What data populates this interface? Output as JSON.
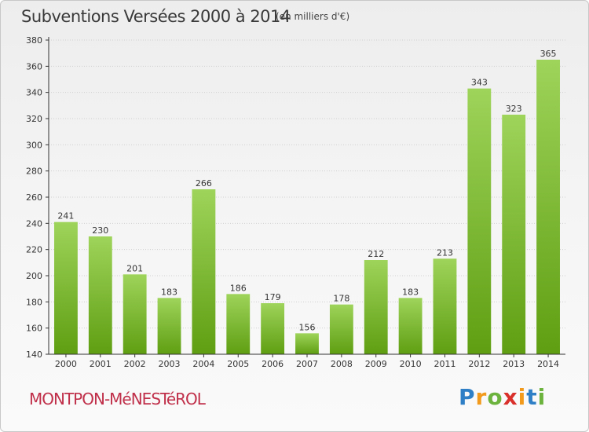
{
  "title": "Subventions Versées 2000 à 2014",
  "subtitle": "(en milliers d'€)",
  "commune": "MONTPON-MéNESTéROL",
  "logo": [
    "P",
    "r",
    "o",
    "x",
    "i",
    "t",
    "i"
  ],
  "colors": {
    "bar_light": "#9ed45a",
    "bar_dark": "#5f9e12",
    "axis": "#333333",
    "grid": "#d0d0d0"
  },
  "chart_data": {
    "type": "bar",
    "categories": [
      "2000",
      "2001",
      "2002",
      "2003",
      "2004",
      "2005",
      "2006",
      "2007",
      "2008",
      "2009",
      "2010",
      "2011",
      "2012",
      "2013",
      "2014"
    ],
    "values": [
      241,
      230,
      201,
      183,
      266,
      186,
      179,
      156,
      178,
      212,
      183,
      213,
      343,
      323,
      365
    ],
    "ylim": [
      140,
      380
    ],
    "yticks": [
      140,
      160,
      180,
      200,
      220,
      240,
      260,
      280,
      300,
      320,
      340,
      360,
      380
    ],
    "grid": true,
    "xlabel": "",
    "ylabel": ""
  }
}
